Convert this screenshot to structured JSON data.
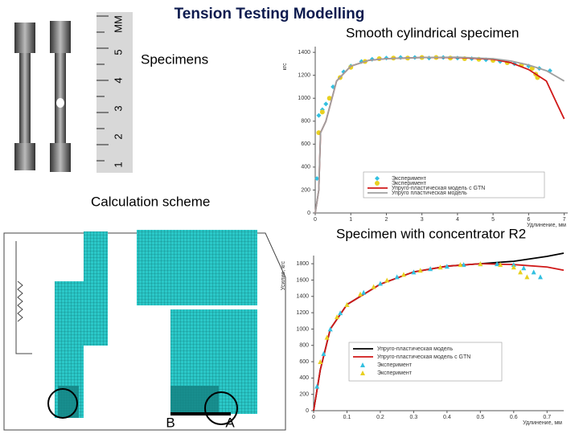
{
  "title": "Tension Testing Modelling",
  "labels": {
    "smooth": "Smooth cylindrical specimen",
    "specimens": "Specimens",
    "scheme": "Calculation scheme",
    "concentrator": "Specimen with concentrator R2"
  },
  "ruler_labels": [
    "1",
    "2",
    "3",
    "4",
    "5",
    "MM"
  ],
  "mesh_labels": [
    "B",
    "A"
  ],
  "chart_data": [
    {
      "type": "line",
      "x_label": "Удлинение, мм",
      "y_label": "кгс",
      "xlim": [
        0,
        7.1
      ],
      "ylim": [
        0,
        1450
      ],
      "xticks": [
        0,
        1,
        2,
        3,
        4,
        5,
        6,
        7
      ],
      "yticks": [
        0,
        200,
        400,
        600,
        800,
        1000,
        1200,
        1400
      ],
      "grid": false,
      "series": [
        {
          "name": "Эксперимент",
          "color": "#33c0e0",
          "marker": "diamond",
          "x": [
            0.05,
            0.1,
            0.2,
            0.3,
            0.5,
            0.8,
            1,
            1.3,
            1.6,
            2,
            2.4,
            2.8,
            3.2,
            3.6,
            4,
            4.4,
            4.8,
            5.2,
            5.6,
            6,
            6.3,
            6.6
          ],
          "values": [
            300,
            850,
            900,
            950,
            1100,
            1230,
            1280,
            1320,
            1340,
            1350,
            1355,
            1355,
            1350,
            1355,
            1350,
            1345,
            1335,
            1320,
            1300,
            1280,
            1260,
            1240
          ]
        },
        {
          "name": "Эксперимент",
          "color": "#e8d020",
          "marker": "circle",
          "x": [
            0.1,
            0.2,
            0.4,
            0.7,
            1,
            1.4,
            1.8,
            2.2,
            2.6,
            3,
            3.4,
            3.8,
            4.2,
            4.6,
            5,
            5.4,
            5.8,
            6.1,
            6.2,
            6.25
          ],
          "values": [
            700,
            880,
            1000,
            1180,
            1270,
            1320,
            1345,
            1350,
            1350,
            1355,
            1355,
            1350,
            1345,
            1340,
            1330,
            1310,
            1290,
            1260,
            1210,
            1180
          ]
        },
        {
          "name": "Упруго-пластическая модель с GTN",
          "color": "#d01818",
          "marker": "none",
          "x": [
            0,
            0.1,
            0.15,
            0.3,
            0.6,
            1,
            1.5,
            2,
            3,
            4,
            5,
            5.5,
            6,
            6.5,
            6.8,
            7
          ],
          "values": [
            0,
            200,
            700,
            800,
            1150,
            1280,
            1330,
            1345,
            1355,
            1355,
            1340,
            1310,
            1250,
            1150,
            950,
            820
          ]
        },
        {
          "name": "Упруго пластическая модель",
          "color": "#a0a0a0",
          "marker": "none",
          "x": [
            0,
            0.1,
            0.15,
            0.3,
            0.6,
            1,
            1.5,
            2,
            3,
            4,
            5,
            5.5,
            6,
            6.5,
            7
          ],
          "values": [
            0,
            200,
            700,
            800,
            1150,
            1280,
            1330,
            1345,
            1355,
            1358,
            1345,
            1325,
            1290,
            1240,
            1150
          ]
        }
      ]
    },
    {
      "type": "line",
      "x_label": "Удлинение, мм",
      "y_label": "Усилие, кгс",
      "xlim": [
        0,
        0.75
      ],
      "ylim": [
        0,
        1900
      ],
      "xticks": [
        0,
        0.1,
        0.2,
        0.3,
        0.4,
        0.5,
        0.6,
        0.7
      ],
      "yticks": [
        0,
        200,
        400,
        600,
        800,
        1000,
        1200,
        1400,
        1600,
        1800
      ],
      "grid": false,
      "series": [
        {
          "name": "Упруго-пластическая модель",
          "color": "#000000",
          "marker": "none",
          "x": [
            0,
            0.02,
            0.05,
            0.1,
            0.2,
            0.3,
            0.4,
            0.5,
            0.6,
            0.7,
            0.75
          ],
          "values": [
            0,
            500,
            1000,
            1300,
            1550,
            1700,
            1770,
            1800,
            1830,
            1890,
            1930
          ]
        },
        {
          "name": "Упруго-пластическая модель с GTN",
          "color": "#d01818",
          "marker": "none",
          "x": [
            0,
            0.02,
            0.05,
            0.1,
            0.2,
            0.3,
            0.4,
            0.5,
            0.6,
            0.7,
            0.75
          ],
          "values": [
            0,
            500,
            1000,
            1300,
            1550,
            1700,
            1770,
            1800,
            1790,
            1760,
            1720
          ]
        },
        {
          "name": "Эксперимент",
          "color": "#33c0e0",
          "marker": "triangle",
          "x": [
            0.01,
            0.03,
            0.05,
            0.08,
            0.1,
            0.15,
            0.2,
            0.25,
            0.3,
            0.35,
            0.4,
            0.45,
            0.5,
            0.55,
            0.6,
            0.63,
            0.66,
            0.68
          ],
          "values": [
            300,
            700,
            1000,
            1200,
            1300,
            1450,
            1560,
            1640,
            1700,
            1740,
            1770,
            1790,
            1800,
            1800,
            1790,
            1750,
            1700,
            1640
          ]
        },
        {
          "name": "Эксперимент",
          "color": "#e8d020",
          "marker": "triangle",
          "x": [
            0.02,
            0.04,
            0.07,
            0.1,
            0.14,
            0.18,
            0.22,
            0.27,
            0.32,
            0.38,
            0.44,
            0.5,
            0.56,
            0.6,
            0.62,
            0.64
          ],
          "values": [
            600,
            900,
            1150,
            1300,
            1430,
            1520,
            1600,
            1670,
            1720,
            1760,
            1790,
            1800,
            1790,
            1760,
            1700,
            1640
          ]
        }
      ]
    }
  ]
}
